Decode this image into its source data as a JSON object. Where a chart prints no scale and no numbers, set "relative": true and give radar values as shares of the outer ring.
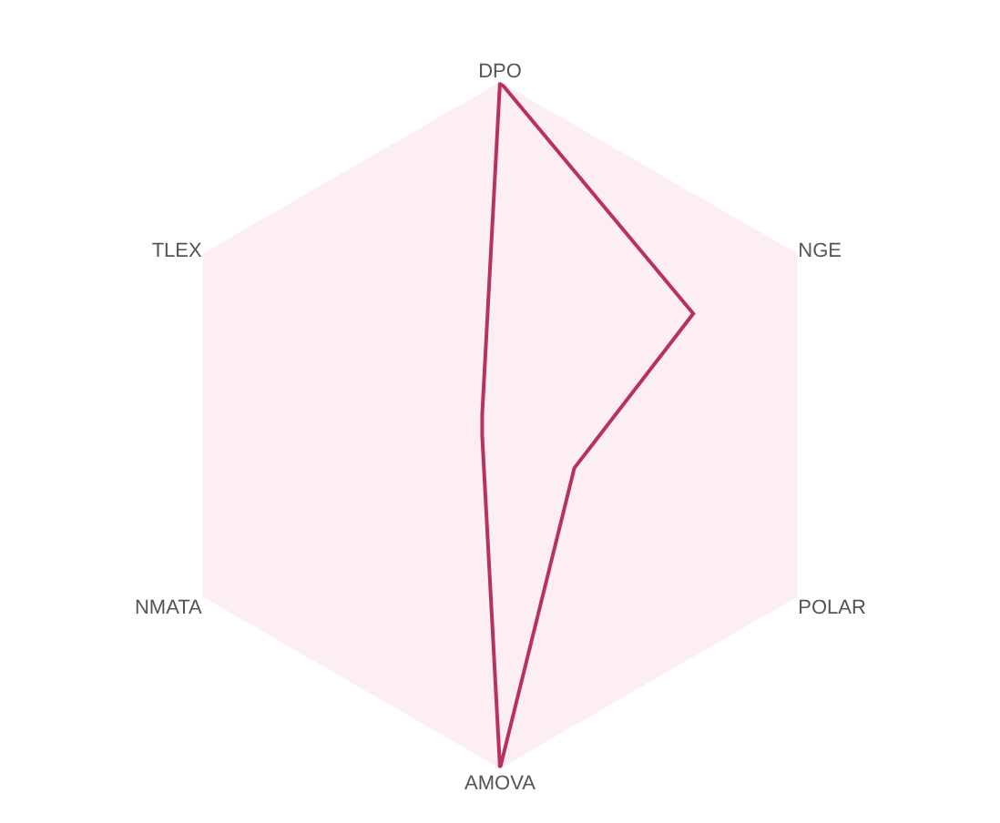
{
  "chart_data": {
    "type": "radar",
    "relative": true,
    "categories": [
      "DPO",
      "NGE",
      "POLAR",
      "AMOVA",
      "NMATA",
      "TLEX"
    ],
    "series": [
      {
        "color": "#b8325e",
        "values": [
          1,
          0.65,
          0.25,
          1,
          0.06,
          0.06
        ]
      }
    ],
    "marker": "none",
    "grid": false
  }
}
